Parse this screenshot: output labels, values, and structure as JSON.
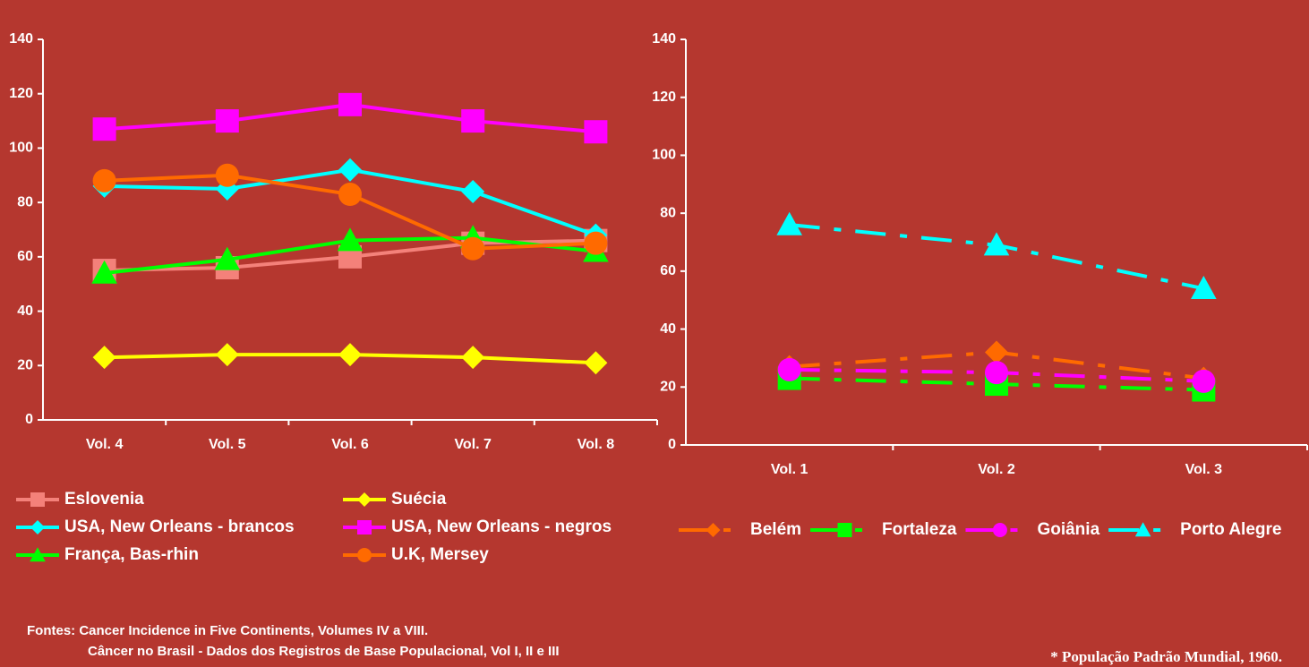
{
  "chart_data": [
    {
      "type": "line",
      "categories": [
        "Vol. 4",
        "Vol. 5",
        "Vol. 6",
        "Vol. 7",
        "Vol. 8"
      ],
      "ylim": [
        0,
        140
      ],
      "yticks": [
        0,
        20,
        40,
        60,
        80,
        100,
        120,
        140
      ],
      "line_style": "solid",
      "series": [
        {
          "name": "Eslovenia",
          "color": "#f4817a",
          "marker": "square",
          "values": [
            55,
            56,
            60,
            65,
            66
          ]
        },
        {
          "name": "Suécia",
          "color": "#ffff00",
          "marker": "diamond",
          "values": [
            23,
            24,
            24,
            23,
            21
          ]
        },
        {
          "name": "USA, New Orleans - brancos",
          "color": "#00ffff",
          "marker": "diamond",
          "values": [
            86,
            85,
            92,
            84,
            68
          ]
        },
        {
          "name": "USA, New Orleans - negros",
          "color": "#ff00ff",
          "marker": "square",
          "values": [
            107,
            110,
            116,
            110,
            106
          ]
        },
        {
          "name": "França, Bas-rhin",
          "color": "#00ff00",
          "marker": "triangle",
          "values": [
            54,
            59,
            66,
            67,
            62
          ]
        },
        {
          "name": "U.K, Mersey",
          "color": "#ff6a00",
          "marker": "circle",
          "values": [
            88,
            90,
            83,
            63,
            65
          ]
        }
      ]
    },
    {
      "type": "line",
      "categories": [
        "Vol. 1",
        "Vol. 2",
        "Vol. 3"
      ],
      "ylim": [
        0,
        140
      ],
      "yticks": [
        0,
        20,
        40,
        60,
        80,
        100,
        120,
        140
      ],
      "line_style": "dashdot",
      "series": [
        {
          "name": "Belém",
          "color": "#ff6a00",
          "marker": "diamond",
          "values": [
            27,
            32,
            23
          ]
        },
        {
          "name": "Fortaleza",
          "color": "#00ff00",
          "marker": "square",
          "values": [
            23,
            21,
            19
          ]
        },
        {
          "name": "Goiânia",
          "color": "#ff00ff",
          "marker": "circle",
          "values": [
            26,
            25,
            22
          ]
        },
        {
          "name": "Porto Alegre",
          "color": "#00ffff",
          "marker": "triangle",
          "values": [
            76,
            69,
            54
          ]
        }
      ]
    }
  ],
  "sources": [
    "Fontes: Cancer Incidence in Five Continents, Volumes IV a VIII.",
    "Câncer no Brasil - Dados dos Registros de Base Populacional, Vol I, II e III"
  ],
  "note": "* População Padrão Mundial, 1960."
}
